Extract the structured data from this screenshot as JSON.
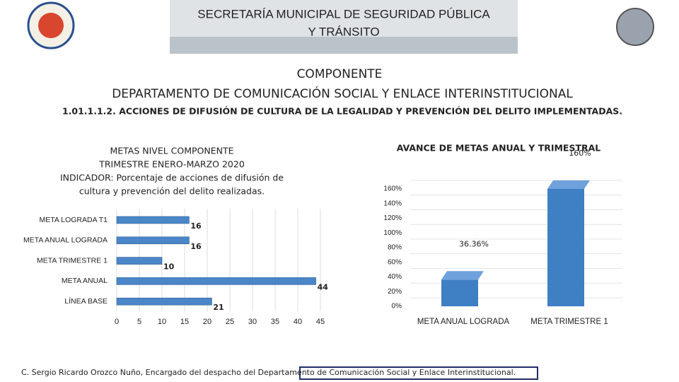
{
  "header": {
    "title": [
      "SECRETARÍA MUNICIPAL DE SEGURIDAD PÚBLICA",
      "Y TRÁNSITO"
    ]
  },
  "headings": [
    "COMPONENTE",
    "DEPARTAMENTO DE COMUNICACIÓN SOCIAL Y ENLACE INTERINSTITUCIONAL",
    "1.01.1.1.2. ACCIONES DE DIFUSIÓN DE CULTURA DE LA LEGALIDAD Y PREVENCIÓN DEL DELITO IMPLEMENTADAS."
  ],
  "chart_data": [
    {
      "type": "hbar",
      "title": [
        "METAS NIVEL COMPONENTE",
        "TRIMESTRE ENERO-MARZO 2020",
        "INDICADOR: Porcentaje de acciones de difusión de",
        "cultura y prevención del delito realizadas."
      ],
      "categories": [
        "META LOGRADA T1",
        "META ANUAL LOGRADA",
        "META TRIMESTRE 1",
        "META ANUAL",
        "LÍNEA BASE"
      ],
      "values": [
        16,
        16,
        10,
        44,
        21
      ],
      "color": "#4a86c8",
      "xlim": [
        0,
        45
      ],
      "xticks": [
        0,
        5,
        10,
        15,
        20,
        25,
        30,
        35,
        40,
        45
      ],
      "grid": true
    },
    {
      "type": "bar",
      "title": "AVANCE DE METAS ANUAL Y TRIMESTRAL",
      "categories": [
        "META ANUAL LOGRADA",
        "META TRIMESTRE 1"
      ],
      "values": [
        36.36,
        160
      ],
      "value_labels": [
        "36.36%",
        "160%"
      ],
      "color": "#3f7fc4",
      "ylim": [
        0,
        160
      ],
      "yticks": [
        {
          "value": 0,
          "label": "0%"
        },
        {
          "value": 20,
          "label": "20%"
        },
        {
          "value": 40,
          "label": "40%"
        },
        {
          "value": 60,
          "label": "60%"
        },
        {
          "value": 80,
          "label": "80%"
        },
        {
          "value": 100,
          "label": "100%"
        },
        {
          "value": 120,
          "label": "120%"
        },
        {
          "value": 140,
          "label": "140%"
        },
        {
          "value": 160,
          "label": "160%"
        }
      ],
      "grid": true
    }
  ],
  "footer": "C. Sergio Ricardo Orozco Nuño, Encargado del despacho del Departamento de Comunicación Social y Enlace Interinstitucional."
}
